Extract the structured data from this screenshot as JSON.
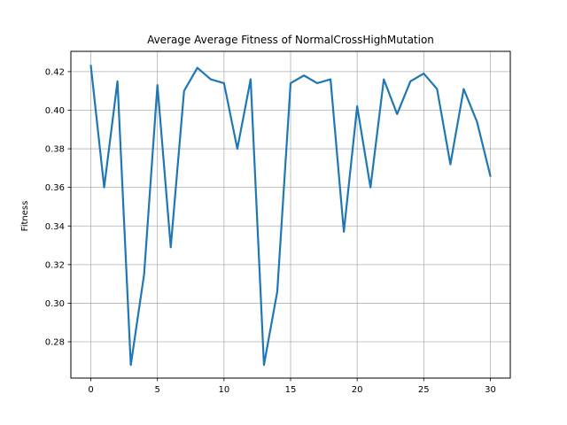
{
  "chart_data": {
    "type": "line",
    "title": "Average Average Fitness of NormalCrossHighMutation",
    "xlabel": "",
    "ylabel": "Fitness",
    "xlim": [
      -1.5,
      31.5
    ],
    "ylim": [
      0.2612,
      0.4305
    ],
    "grid": true,
    "x_ticks": [
      0,
      5,
      10,
      15,
      20,
      25,
      30
    ],
    "y_ticks": [
      0.28,
      0.3,
      0.32,
      0.34,
      0.36,
      0.38,
      0.4,
      0.42
    ],
    "y_tick_labels": [
      "0.28",
      "0.30",
      "0.32",
      "0.34",
      "0.36",
      "0.38",
      "0.40",
      "0.42"
    ],
    "x": [
      0,
      1,
      2,
      3,
      4,
      5,
      6,
      7,
      8,
      9,
      10,
      11,
      12,
      13,
      14,
      15,
      16,
      17,
      18,
      19,
      20,
      21,
      22,
      23,
      24,
      25,
      26,
      27,
      28,
      29,
      30
    ],
    "series": [
      {
        "color": "#1f77b4",
        "values": [
          0.423,
          0.36,
          0.415,
          0.268,
          0.315,
          0.413,
          0.329,
          0.41,
          0.422,
          0.416,
          0.414,
          0.38,
          0.416,
          0.268,
          0.306,
          0.414,
          0.418,
          0.414,
          0.416,
          0.337,
          0.402,
          0.36,
          0.416,
          0.398,
          0.415,
          0.419,
          0.411,
          0.372,
          0.411,
          0.394,
          0.366
        ]
      }
    ]
  }
}
